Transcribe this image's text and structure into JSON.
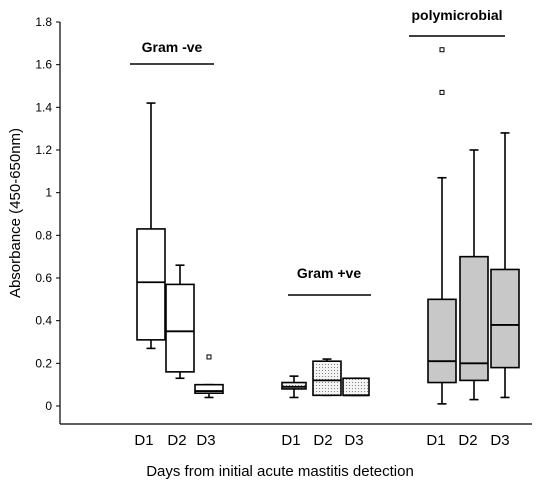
{
  "chart_data": {
    "type": "box",
    "title": "",
    "xlabel": "Days from initial acute mastitis detection",
    "ylabel": "Absorbance (450-650nm)",
    "ylim": [
      0,
      1.8
    ],
    "yticks": [
      "0",
      "0.2",
      "0.4",
      "0.6",
      "0.8",
      "1",
      "1.2",
      "1.4",
      "1.6",
      "1.8"
    ],
    "grid": false,
    "legend": "none",
    "groups": [
      {
        "label": "Gram -ve",
        "fill": "#ffffff",
        "pattern": "none",
        "boxes": [
          {
            "category": "D1",
            "whisker_low": 0.27,
            "q1": 0.31,
            "median": 0.58,
            "q3": 0.83,
            "whisker_high": 1.42,
            "outliers": []
          },
          {
            "category": "D2",
            "whisker_low": 0.13,
            "q1": 0.16,
            "median": 0.35,
            "q3": 0.57,
            "whisker_high": 0.66,
            "outliers": []
          },
          {
            "category": "D3",
            "whisker_low": 0.04,
            "q1": 0.06,
            "median": 0.07,
            "q3": 0.1,
            "whisker_high": 0.1,
            "outliers": [
              0.23
            ]
          }
        ]
      },
      {
        "label": "Gram +ve",
        "fill": "#f4f4f4",
        "pattern": "dotted",
        "boxes": [
          {
            "category": "D1",
            "whisker_low": 0.04,
            "q1": 0.08,
            "median": 0.09,
            "q3": 0.11,
            "whisker_high": 0.14,
            "outliers": []
          },
          {
            "category": "D2",
            "whisker_low": 0.05,
            "q1": 0.05,
            "median": 0.12,
            "q3": 0.21,
            "whisker_high": 0.22,
            "outliers": []
          },
          {
            "category": "D3",
            "whisker_low": 0.05,
            "q1": 0.05,
            "median": 0.05,
            "q3": 0.13,
            "whisker_high": 0.13,
            "outliers": []
          }
        ]
      },
      {
        "label": "polymicrobial",
        "fill": "#c8c8c8",
        "pattern": "none",
        "boxes": [
          {
            "category": "D1",
            "whisker_low": 0.01,
            "q1": 0.11,
            "median": 0.21,
            "q3": 0.5,
            "whisker_high": 1.07,
            "outliers": [
              1.47,
              1.67
            ]
          },
          {
            "category": "D2",
            "whisker_low": 0.03,
            "q1": 0.12,
            "median": 0.2,
            "q3": 0.7,
            "whisker_high": 1.2,
            "outliers": []
          },
          {
            "category": "D3",
            "whisker_low": 0.04,
            "q1": 0.18,
            "median": 0.38,
            "q3": 0.64,
            "whisker_high": 1.28,
            "outliers": []
          }
        ]
      }
    ]
  }
}
